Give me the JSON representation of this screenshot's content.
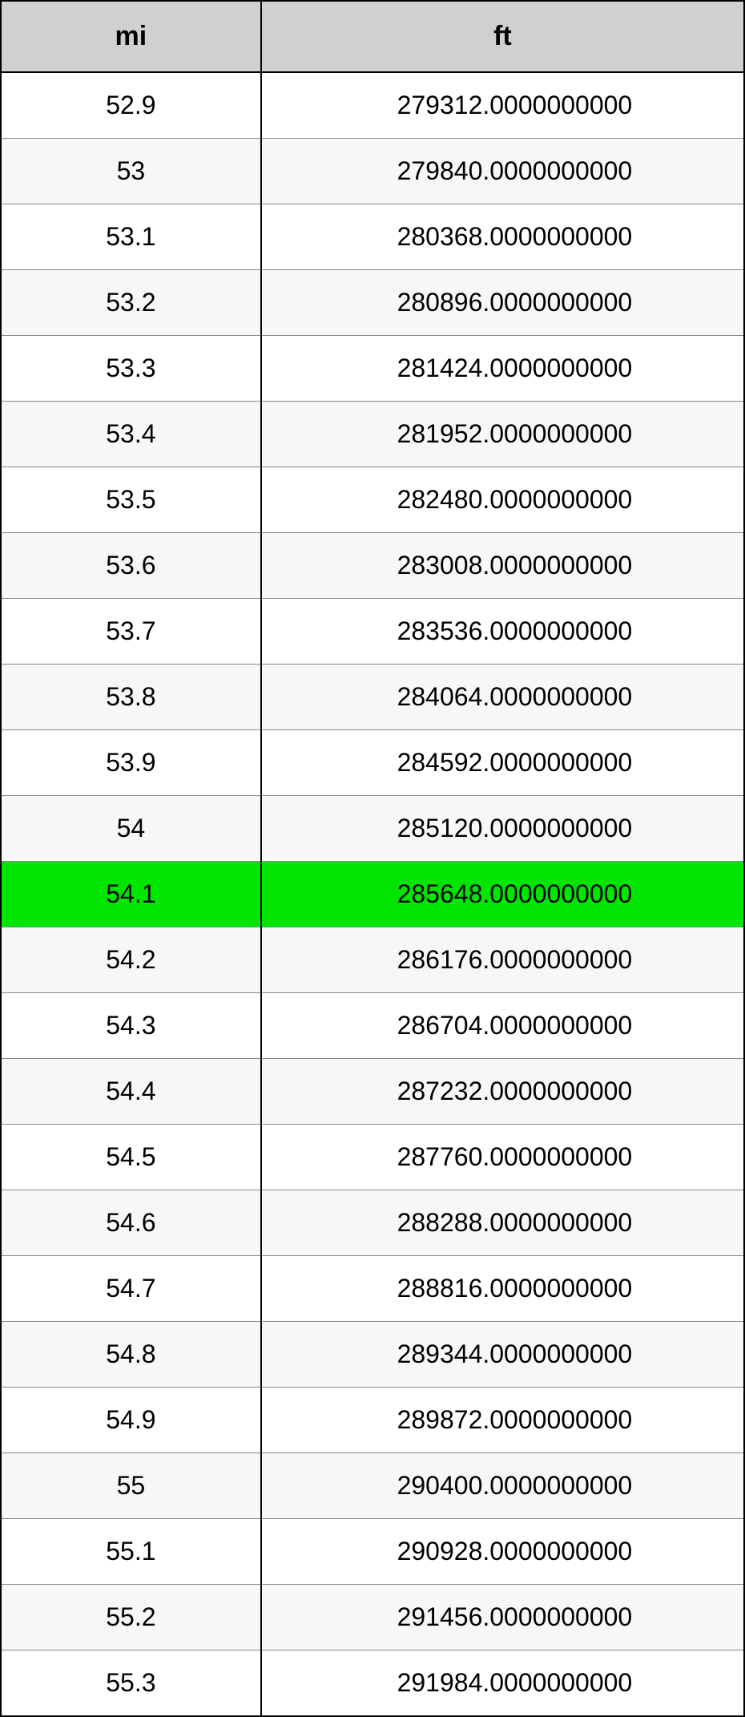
{
  "table": {
    "columns": [
      "mi",
      "ft"
    ],
    "header_bg": "#d0d0d0",
    "header_fontsize": 34,
    "cell_fontsize": 32,
    "border_color": "#000000",
    "row_alt_color": "#f7f7f7",
    "row_white_color": "#ffffff",
    "highlight_color": "#00e600",
    "highlight_index": 12,
    "col_widths_pct": [
      35,
      65
    ],
    "col_align": [
      "center",
      "center"
    ],
    "rows": [
      [
        "52.9",
        "279312.0000000000"
      ],
      [
        "53",
        "279840.0000000000"
      ],
      [
        "53.1",
        "280368.0000000000"
      ],
      [
        "53.2",
        "280896.0000000000"
      ],
      [
        "53.3",
        "281424.0000000000"
      ],
      [
        "53.4",
        "281952.0000000000"
      ],
      [
        "53.5",
        "282480.0000000000"
      ],
      [
        "53.6",
        "283008.0000000000"
      ],
      [
        "53.7",
        "283536.0000000000"
      ],
      [
        "53.8",
        "284064.0000000000"
      ],
      [
        "53.9",
        "284592.0000000000"
      ],
      [
        "54",
        "285120.0000000000"
      ],
      [
        "54.1",
        "285648.0000000000"
      ],
      [
        "54.2",
        "286176.0000000000"
      ],
      [
        "54.3",
        "286704.0000000000"
      ],
      [
        "54.4",
        "287232.0000000000"
      ],
      [
        "54.5",
        "287760.0000000000"
      ],
      [
        "54.6",
        "288288.0000000000"
      ],
      [
        "54.7",
        "288816.0000000000"
      ],
      [
        "54.8",
        "289344.0000000000"
      ],
      [
        "54.9",
        "289872.0000000000"
      ],
      [
        "55",
        "290400.0000000000"
      ],
      [
        "55.1",
        "290928.0000000000"
      ],
      [
        "55.2",
        "291456.0000000000"
      ],
      [
        "55.3",
        "291984.0000000000"
      ]
    ]
  }
}
